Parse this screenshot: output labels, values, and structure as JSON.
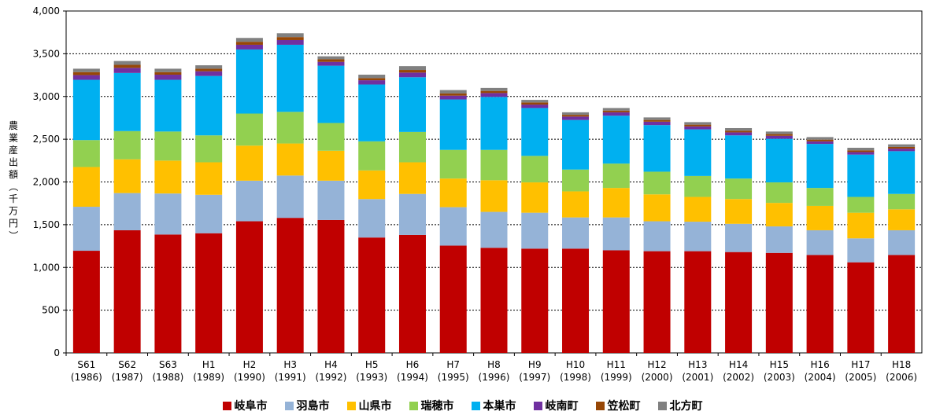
{
  "chart_data": {
    "type": "bar",
    "stacked": true,
    "ylabel": "農業産出額（千万円）",
    "ylim": [
      0,
      4000
    ],
    "yticks": [
      "0",
      "500",
      "1,000",
      "1,500",
      "2,000",
      "2,500",
      "3,000",
      "3,500",
      "4,000"
    ],
    "grid": true,
    "legend_position": "bottom",
    "categories": [
      [
        "S61",
        "(1986)"
      ],
      [
        "S62",
        "(1987)"
      ],
      [
        "S63",
        "(1988)"
      ],
      [
        "H1",
        "(1989)"
      ],
      [
        "H2",
        "(1990)"
      ],
      [
        "H3",
        "(1991)"
      ],
      [
        "H4",
        "(1992)"
      ],
      [
        "H5",
        "(1993)"
      ],
      [
        "H6",
        "(1994)"
      ],
      [
        "H7",
        "(1995)"
      ],
      [
        "H8",
        "(1996)"
      ],
      [
        "H9",
        "(1997)"
      ],
      [
        "H10",
        "(1998)"
      ],
      [
        "H11",
        "(1999)"
      ],
      [
        "H12",
        "(2000)"
      ],
      [
        "H13",
        "(2001)"
      ],
      [
        "H14",
        "(2002)"
      ],
      [
        "H15",
        "(2003)"
      ],
      [
        "H16",
        "(2004)"
      ],
      [
        "H17",
        "(2005)"
      ],
      [
        "H18",
        "(2006)"
      ]
    ],
    "series": [
      {
        "name": "岐阜市",
        "color": "#c00000",
        "values": [
          1195,
          1435,
          1385,
          1400,
          1540,
          1580,
          1555,
          1350,
          1380,
          1255,
          1230,
          1220,
          1220,
          1200,
          1190,
          1190,
          1180,
          1170,
          1145,
          1060,
          1145
        ]
      },
      {
        "name": "羽島市",
        "color": "#95b3d7",
        "values": [
          515,
          435,
          480,
          450,
          475,
          495,
          460,
          450,
          480,
          450,
          420,
          420,
          365,
          385,
          350,
          345,
          330,
          310,
          290,
          280,
          290
        ]
      },
      {
        "name": "山県市",
        "color": "#ffc000",
        "values": [
          465,
          395,
          385,
          380,
          410,
          375,
          350,
          335,
          370,
          335,
          370,
          355,
          305,
          345,
          315,
          290,
          290,
          275,
          285,
          300,
          245
        ]
      },
      {
        "name": "瑞穂市",
        "color": "#92d050",
        "values": [
          315,
          330,
          340,
          315,
          375,
          370,
          325,
          340,
          355,
          335,
          355,
          310,
          255,
          285,
          265,
          245,
          240,
          240,
          210,
          185,
          180
        ]
      },
      {
        "name": "本巣市",
        "color": "#00b0f0",
        "values": [
          705,
          680,
          605,
          695,
          750,
          785,
          670,
          665,
          640,
          590,
          620,
          560,
          580,
          560,
          545,
          545,
          505,
          510,
          515,
          495,
          500
        ]
      },
      {
        "name": "岐南町",
        "color": "#7030a0",
        "values": [
          55,
          60,
          60,
          55,
          55,
          55,
          45,
          50,
          55,
          45,
          45,
          40,
          40,
          40,
          40,
          35,
          35,
          35,
          30,
          30,
          30
        ]
      },
      {
        "name": "笠松町",
        "color": "#974706",
        "values": [
          35,
          35,
          30,
          30,
          35,
          35,
          30,
          25,
          30,
          25,
          25,
          25,
          20,
          20,
          20,
          20,
          20,
          20,
          20,
          20,
          20
        ]
      },
      {
        "name": "北方町",
        "color": "#808080",
        "values": [
          40,
          45,
          40,
          40,
          45,
          45,
          35,
          40,
          45,
          40,
          35,
          30,
          30,
          30,
          30,
          30,
          30,
          30,
          30,
          30,
          30
        ]
      }
    ]
  }
}
